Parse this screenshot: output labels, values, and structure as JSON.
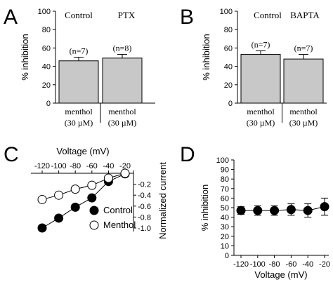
{
  "colors": {
    "bar_fill": "#c8c8c8",
    "ink": "#000000",
    "open_marker": "#ffffff"
  },
  "panels": {
    "A": {
      "letter": "A"
    },
    "B": {
      "letter": "B"
    },
    "C": {
      "letter": "C"
    },
    "D": {
      "letter": "D"
    }
  },
  "chart_data": [
    {
      "panel": "A",
      "type": "bar",
      "headers": [
        "Control",
        "PTX"
      ],
      "categories": [
        [
          "menthol",
          "(30 µM)"
        ],
        [
          "menthol",
          "(30 µM)"
        ]
      ],
      "values": [
        46,
        49
      ],
      "errors": [
        4,
        4
      ],
      "n_labels": [
        "(n=7)",
        "(n=8)"
      ],
      "ylabel": "% inhibition",
      "ylim": [
        0,
        100
      ],
      "yticks": [
        "0",
        "20",
        "40",
        "60",
        "80",
        "100"
      ]
    },
    {
      "panel": "B",
      "type": "bar",
      "headers": [
        "Control",
        "BAPTA"
      ],
      "categories": [
        [
          "menthol",
          "(30 µM)"
        ],
        [
          "menthol",
          "(30 µM)"
        ]
      ],
      "values": [
        53,
        48
      ],
      "errors": [
        4,
        5
      ],
      "n_labels": [
        "(n=7)",
        "(n=7)"
      ],
      "ylabel": "% inhibition",
      "ylim": [
        0,
        100
      ],
      "yticks": [
        "0",
        "20",
        "40",
        "60",
        "80",
        "100"
      ]
    },
    {
      "panel": "C",
      "type": "line",
      "xlabel": "Voltage (mV)",
      "ylabel": "Normalized current",
      "xlim": [
        -120,
        -20
      ],
      "ylim": [
        -1.0,
        0
      ],
      "xticks": [
        "-120",
        "-100",
        "-80",
        "-60",
        "-40",
        "-20"
      ],
      "yticks": [
        "-0.2",
        "-0.4",
        "-0.6",
        "-0.8",
        "-1.0"
      ],
      "x": [
        -120,
        -100,
        -80,
        -60,
        -40,
        -20
      ],
      "series": [
        {
          "name": "Control",
          "marker": "filled",
          "values": [
            -1.0,
            -0.82,
            -0.62,
            -0.45,
            -0.15,
            -0.01
          ]
        },
        {
          "name": "Menthol",
          "marker": "open",
          "values": [
            -0.48,
            -0.4,
            -0.29,
            -0.22,
            -0.09,
            0.0
          ],
          "errors": [
            0.05,
            0.03,
            0.02,
            0.02,
            0.02,
            0.01
          ]
        }
      ]
    },
    {
      "panel": "D",
      "type": "line",
      "xlabel": "Voltage (mV)",
      "ylabel": "% inhibition",
      "xlim": [
        -120,
        -20
      ],
      "ylim": [
        0,
        100
      ],
      "xticks": [
        "-120",
        "-100",
        "-80",
        "-60",
        "-40",
        "-20"
      ],
      "yticks": [
        "0",
        "10",
        "20",
        "30",
        "40",
        "50",
        "60",
        "70",
        "80",
        "90",
        "100"
      ],
      "x": [
        -120,
        -100,
        -80,
        -60,
        -40,
        -20
      ],
      "values": [
        47,
        47,
        47,
        48,
        47,
        51
      ],
      "errors": [
        4,
        5,
        5,
        6,
        7,
        9
      ]
    }
  ]
}
